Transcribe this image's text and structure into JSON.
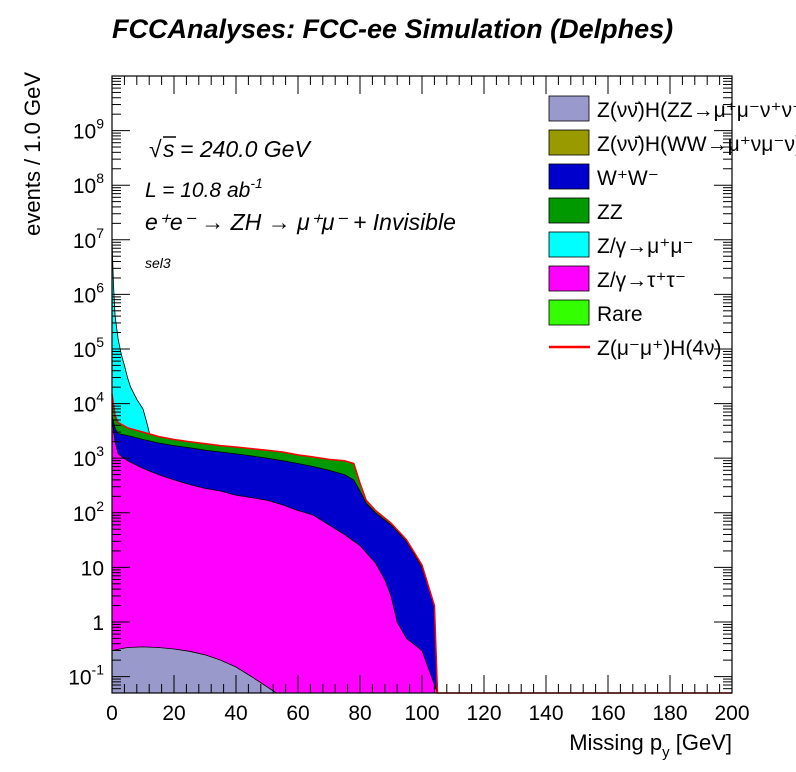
{
  "title": "FCCAnalyses: FCC-ee Simulation (Delphes)",
  "chart_data": {
    "type": "area",
    "stacked": true,
    "xlabel": "Missing p_y [GeV]",
    "ylabel": "events / 1.0 GeV",
    "xlim": [
      0,
      200
    ],
    "ylim": [
      0.05,
      10000000000
    ],
    "yscale": "log",
    "x_ticks": [
      0,
      20,
      40,
      60,
      80,
      100,
      120,
      140,
      160,
      180,
      200
    ],
    "y_ticks": [
      "10^-1",
      "1",
      "10",
      "10^2",
      "10^3",
      "10^4",
      "10^5",
      "10^6",
      "10^7",
      "10^8",
      "10^9"
    ],
    "annotations": {
      "sqrt_s": "= 240.0 GeV",
      "lumi_prefix": "L = 10.8 ab",
      "lumi_exp": "-1",
      "process": "e⁺e⁻ → ZH → μ⁺μ⁻ + Invisible",
      "selection": "sel3"
    },
    "legend": [
      {
        "label": "Z(νν̄)H(ZZ→μ⁺μ⁻ν⁺ν⁻)",
        "color": "#9999cc",
        "kind": "fill"
      },
      {
        "label": "Z(νν̄)H(WW→μ⁺νμ⁻ν)",
        "color": "#999900",
        "kind": "fill"
      },
      {
        "label": "W⁺W⁻",
        "color": "#0000cc",
        "kind": "fill"
      },
      {
        "label": "ZZ",
        "color": "#009900",
        "kind": "fill"
      },
      {
        "label": "Z/γ→μ⁺μ⁻",
        "color": "#00ffff",
        "kind": "fill"
      },
      {
        "label": "Z/γ→τ⁺τ⁻",
        "color": "#ff00ff",
        "kind": "fill"
      },
      {
        "label": "Rare",
        "color": "#33ff00",
        "kind": "fill"
      },
      {
        "label": "Z(μ⁻μ⁺)H(4ν)",
        "color": "#ff0000",
        "kind": "line"
      }
    ],
    "series": [
      {
        "name": "Z(νν̄)H(ZZ→μ⁺μ⁻ν⁺ν⁻)",
        "color": "#9999cc",
        "x": [
          0,
          5,
          10,
          15,
          20,
          25,
          30,
          35,
          40,
          45,
          50,
          53
        ],
        "y": [
          0.3,
          0.34,
          0.35,
          0.34,
          0.32,
          0.29,
          0.25,
          0.2,
          0.15,
          0.1,
          0.065,
          0.05
        ]
      },
      {
        "name": "Z/γ→τ⁺τ⁻",
        "color": "#ff00ff",
        "x": [
          0,
          1,
          2,
          5,
          10,
          15,
          20,
          25,
          30,
          35,
          40,
          45,
          50,
          55,
          60,
          65,
          70,
          75,
          80,
          85,
          88,
          90,
          92,
          95,
          100,
          105
        ],
        "y": [
          5000,
          2000,
          1200,
          900,
          650,
          500,
          400,
          330,
          280,
          250,
          210,
          190,
          170,
          140,
          110,
          90,
          60,
          40,
          25,
          12,
          6,
          3,
          1,
          0.5,
          0.3,
          0.05
        ]
      },
      {
        "name": "W⁺W⁻",
        "color": "#0000cc",
        "x": [
          0,
          1,
          2,
          5,
          10,
          15,
          20,
          25,
          30,
          35,
          40,
          45,
          50,
          55,
          60,
          65,
          70,
          75,
          78,
          80,
          82,
          85,
          90,
          95,
          100,
          104,
          105
        ],
        "y": [
          6000,
          3500,
          2800,
          2600,
          2200,
          1900,
          1700,
          1550,
          1400,
          1300,
          1200,
          1100,
          1000,
          900,
          800,
          700,
          600,
          500,
          400,
          250,
          150,
          100,
          60,
          30,
          10,
          2,
          0.05
        ]
      },
      {
        "name": "ZZ",
        "color": "#009900",
        "x": [
          0,
          1,
          2,
          5,
          10,
          15,
          20,
          25,
          30,
          35,
          40,
          45,
          50,
          55,
          60,
          65,
          70,
          75,
          78,
          80,
          82,
          85,
          90,
          95,
          100,
          104,
          105
        ],
        "y": [
          15000,
          6000,
          4500,
          3600,
          3000,
          2500,
          2200,
          2000,
          1850,
          1700,
          1600,
          1500,
          1400,
          1300,
          1150,
          1050,
          950,
          900,
          800,
          350,
          170,
          110,
          65,
          32,
          11,
          2,
          0.05
        ]
      },
      {
        "name": "Z/γ→μ⁺μ⁻",
        "color": "#00ffff",
        "x": [
          0,
          0.5,
          1,
          2,
          3,
          4,
          5,
          6,
          8,
          10,
          11,
          12
        ],
        "y": [
          10000000,
          1500000,
          400000,
          150000,
          80000,
          50000,
          30000,
          20000,
          12000,
          8000,
          5000,
          3000
        ]
      }
    ]
  }
}
